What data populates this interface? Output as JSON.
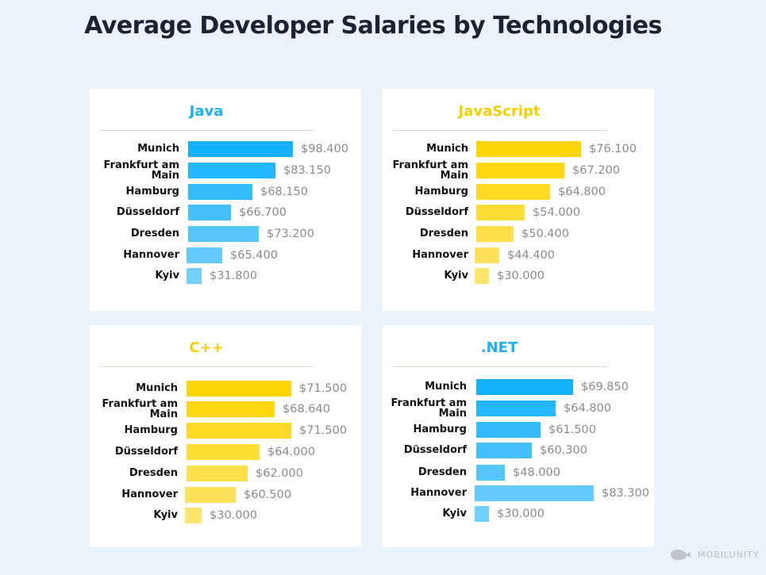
{
  "title": "Average Developer Salaries by Technologies",
  "chart_data": [
    {
      "type": "bar",
      "orientation": "horizontal",
      "title": "Java",
      "title_color": "#1ab0f5",
      "bar_colors": [
        "#14b1fa",
        "#74d0fc"
      ],
      "categories": [
        "Munich",
        "Frankfurt am Main",
        "Hamburg",
        "Düsseldorf",
        "Dresden",
        "Hannover",
        "Kyiv"
      ],
      "values": [
        98400,
        83150,
        68150,
        66700,
        73200,
        65400,
        31800
      ],
      "labels": [
        "$98.400",
        "$83.150",
        "$68.150",
        "$66.700",
        "$73.200",
        "$65.400",
        "$31.800"
      ]
    },
    {
      "type": "bar",
      "orientation": "horizontal",
      "title": "JavaScript",
      "title_color": "#f7cf00",
      "bar_colors": [
        "#fdd500",
        "#ffe46e"
      ],
      "categories": [
        "Munich",
        "Frankfurt am Main",
        "Hamburg",
        "Düsseldorf",
        "Dresden",
        "Hannover",
        "Kyiv"
      ],
      "values": [
        76100,
        67200,
        64800,
        54000,
        50400,
        44400,
        30000
      ],
      "labels": [
        "$76.100",
        "$67.200",
        "$64.800",
        "$54.000",
        "$50.400",
        "$44.400",
        "$30.000"
      ]
    },
    {
      "type": "bar",
      "orientation": "horizontal",
      "title": "C++",
      "title_color": "#f7cf00",
      "bar_colors": [
        "#fdd500",
        "#ffe46e"
      ],
      "categories": [
        "Munich",
        "Frankfurt am Main",
        "Hamburg",
        "Düsseldorf",
        "Dresden",
        "Hannover",
        "Kyiv"
      ],
      "values": [
        71500,
        68640,
        71500,
        64000,
        62000,
        60500,
        30000
      ],
      "labels": [
        "$71.500",
        "$68.640",
        "$71.500",
        "$64.000",
        "$62.000",
        "$60.500",
        "$30.000"
      ]
    },
    {
      "type": "bar",
      "orientation": "horizontal",
      "title": ".NET",
      "title_color": "#1ab0f5",
      "bar_colors": [
        "#14b1fa",
        "#74d0fc"
      ],
      "categories": [
        "Munich",
        "Frankfurt am Main",
        "Hamburg",
        "Düsseldorf",
        "Dresden",
        "Hannover",
        "Kyiv"
      ],
      "values": [
        69850,
        64800,
        61500,
        60300,
        48000,
        83300,
        30000
      ],
      "labels": [
        "$69.850",
        "$64.800",
        "$61.500",
        "$60.300",
        "$48.000",
        "$83.300",
        "$30.000"
      ]
    }
  ],
  "logo": {
    "text": "MOBILUNITY",
    "icon": "whale-icon"
  }
}
